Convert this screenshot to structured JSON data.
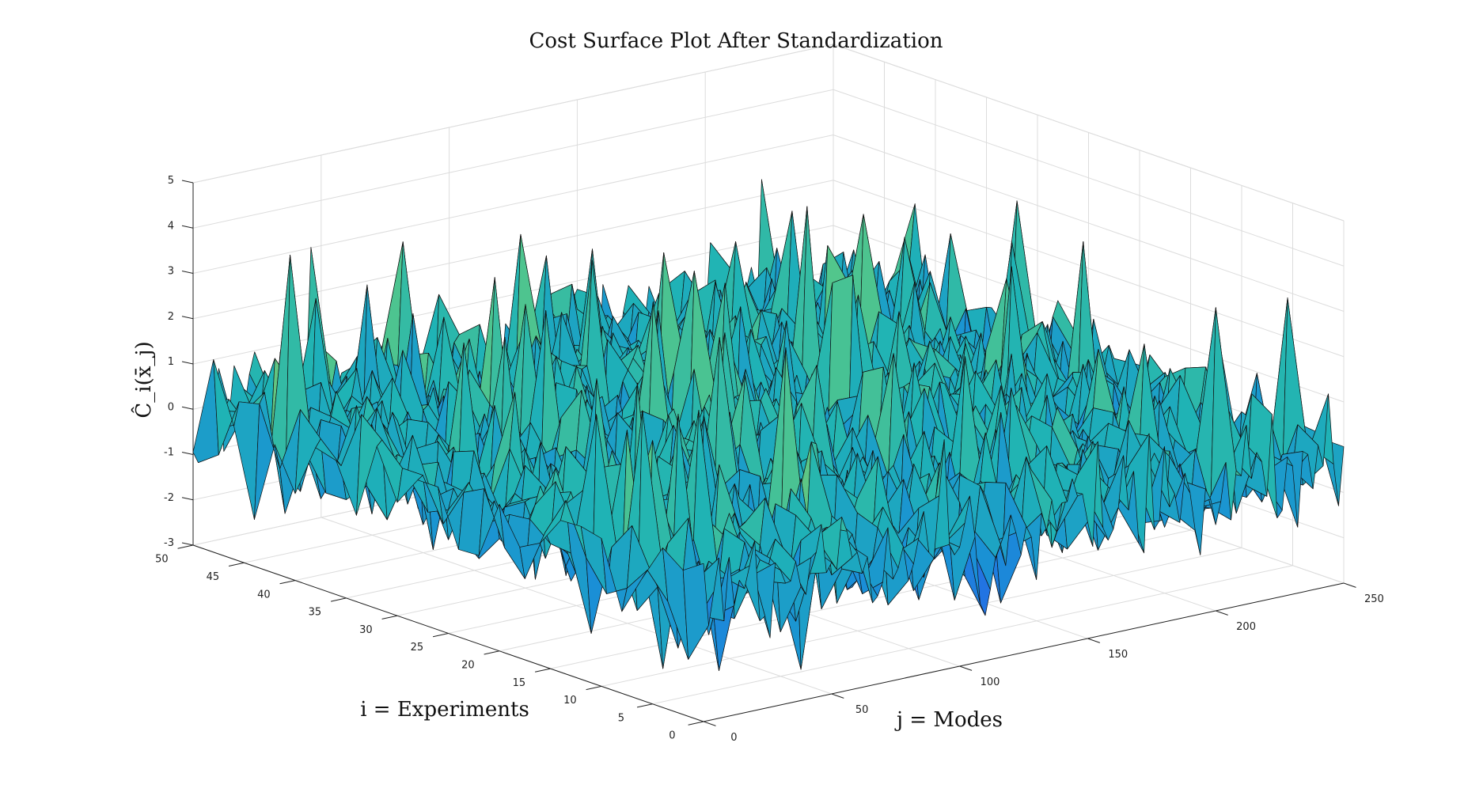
{
  "chart_data": {
    "type": "surface",
    "title": "Cost Surface Plot After Standardization",
    "xlabel": "j = Modes",
    "ylabel": "i = Experiments",
    "zlabel": "Ĉ_i(x̄_j)",
    "xlim": [
      0,
      250
    ],
    "ylim": [
      0,
      50
    ],
    "zlim": [
      -3,
      5
    ],
    "xticks": [
      "0",
      "50",
      "100",
      "150",
      "200",
      "250"
    ],
    "yticks": [
      "0",
      "5",
      "10",
      "15",
      "20",
      "25",
      "30",
      "35",
      "40",
      "45",
      "50"
    ],
    "zticks": [
      "-3",
      "-2",
      "-1",
      "0",
      "1",
      "2",
      "3",
      "4",
      "5"
    ],
    "grid": true,
    "colormap": "parula",
    "colormap_stops": [
      "#3e26a8",
      "#2b57f0",
      "#1a8fd6",
      "#1fb3b5",
      "#53c68b",
      "#a2c358",
      "#e0b93b",
      "#f9fb15"
    ],
    "edge_color": "#111111",
    "surface_size": {
      "modes": 250,
      "experiments": 50
    },
    "value_summary": {
      "min": -2.9,
      "max": 4.3,
      "typical_range": [
        -2,
        2
      ]
    }
  }
}
